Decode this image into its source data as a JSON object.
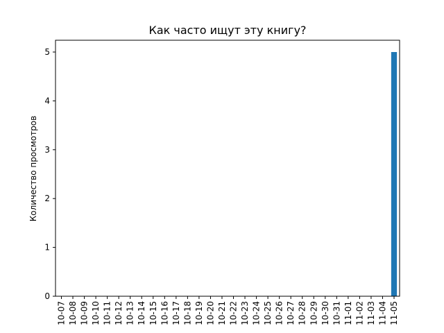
{
  "chart_data": {
    "type": "bar",
    "title": "Как часто ищут эту книгу?",
    "xlabel": "",
    "ylabel": "Количество просмотров",
    "ylim": [
      0,
      5
    ],
    "yticks": [
      0,
      1,
      2,
      3,
      4,
      5
    ],
    "categories": [
      "10-07",
      "10-08",
      "10-09",
      "10-10",
      "10-11",
      "10-12",
      "10-13",
      "10-14",
      "10-15",
      "10-16",
      "10-17",
      "10-18",
      "10-19",
      "10-20",
      "10-21",
      "10-22",
      "10-23",
      "10-24",
      "10-25",
      "10-26",
      "10-27",
      "10-28",
      "10-29",
      "10-30",
      "10-31",
      "11-01",
      "11-02",
      "11-03",
      "11-04",
      "11-05"
    ],
    "values": [
      0,
      0,
      0,
      0,
      0,
      0,
      0,
      0,
      0,
      0,
      0,
      0,
      0,
      0,
      0,
      0,
      0,
      0,
      0,
      0,
      0,
      0,
      0,
      0,
      0,
      0,
      0,
      0,
      0,
      5
    ],
    "bar_color": "#1f77b4",
    "grid": false
  }
}
